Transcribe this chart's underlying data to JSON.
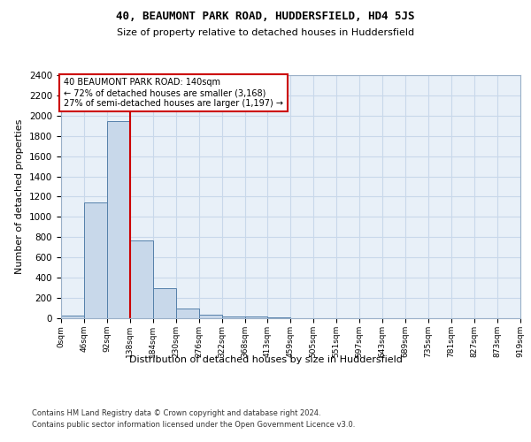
{
  "title1": "40, BEAUMONT PARK ROAD, HUDDERSFIELD, HD4 5JS",
  "title2": "Size of property relative to detached houses in Huddersfield",
  "xlabel": "Distribution of detached houses by size in Huddersfield",
  "ylabel": "Number of detached properties",
  "annotation_line1": "40 BEAUMONT PARK ROAD: 140sqm",
  "annotation_line2": "← 72% of detached houses are smaller (3,168)",
  "annotation_line3": "27% of semi-detached houses are larger (1,197) →",
  "footer1": "Contains HM Land Registry data © Crown copyright and database right 2024.",
  "footer2": "Contains public sector information licensed under the Open Government Licence v3.0.",
  "bar_edges": [
    0,
    46,
    92,
    138,
    184,
    230,
    276,
    322,
    368,
    413,
    459,
    505,
    551,
    597,
    643,
    689,
    735,
    781,
    827,
    873,
    919
  ],
  "bar_heights": [
    30,
    1140,
    1950,
    770,
    300,
    100,
    35,
    20,
    15,
    5,
    3,
    2,
    1,
    1,
    0,
    0,
    0,
    0,
    0,
    0
  ],
  "property_size": 138,
  "bar_color": "#c8d8ea",
  "bar_edge_color": "#5580aa",
  "red_line_color": "#cc0000",
  "annotation_box_color": "#cc0000",
  "grid_color": "#c8d8ea",
  "bg_color": "#e8f0f8",
  "ylim": [
    0,
    2400
  ],
  "yticks": [
    0,
    200,
    400,
    600,
    800,
    1000,
    1200,
    1400,
    1600,
    1800,
    2000,
    2200,
    2400
  ]
}
